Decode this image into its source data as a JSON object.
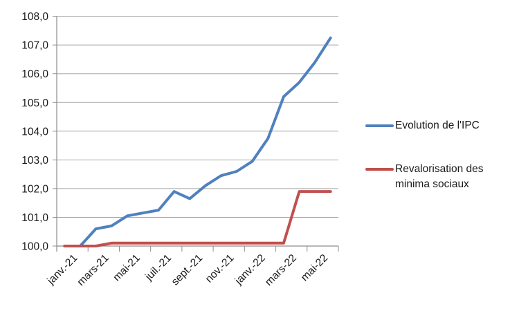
{
  "chart_data": {
    "type": "line",
    "title": "",
    "xlabel": "",
    "ylabel": "",
    "categories": [
      "janv.-21",
      "févr.-21",
      "mars-21",
      "avr.-21",
      "mai-21",
      "juin-21",
      "juil.-21",
      "août-21",
      "sept.-21",
      "oct.-21",
      "nov.-21",
      "déc.-21",
      "janv.-22",
      "févr.-22",
      "mars-22",
      "avr.-22",
      "mai-22",
      "juin-22"
    ],
    "x_tick_labels": [
      "janv.-21",
      "mars-21",
      "mai-21",
      "juil.-21",
      "sept.-21",
      "nov.-21",
      "janv.-22",
      "mars-22",
      "mai-22"
    ],
    "series": [
      {
        "name": "Evolution de l'IPC",
        "color": "#4F81BD",
        "values": [
          100.0,
          100.0,
          100.6,
          100.7,
          101.05,
          101.15,
          101.25,
          101.9,
          101.65,
          102.1,
          102.45,
          102.6,
          102.95,
          103.75,
          105.2,
          105.7,
          106.4,
          107.25
        ]
      },
      {
        "name": "Revalorisation des minima sociaux",
        "color": "#C0504D",
        "values": [
          100.0,
          100.0,
          100.0,
          100.1,
          100.1,
          100.1,
          100.1,
          100.1,
          100.1,
          100.1,
          100.1,
          100.1,
          100.1,
          100.1,
          100.1,
          101.9,
          101.9,
          101.9
        ]
      }
    ],
    "ylim": [
      100.0,
      108.0
    ],
    "y_tick_step": 1.0,
    "y_tick_labels": [
      "100,0",
      "101,0",
      "102,0",
      "103,0",
      "104,0",
      "105,0",
      "106,0",
      "107,0",
      "108,0"
    ],
    "grid": true,
    "legend_position": "right"
  },
  "legend": {
    "items": [
      {
        "label": "Evolution de l'IPC"
      },
      {
        "label": "Revalorisation des minima sociaux"
      }
    ]
  },
  "colors": {
    "ipc_line": "#4F81BD",
    "minima_line": "#C0504D",
    "gridline": "#A6A6A6",
    "axis": "#8C8C8C",
    "tick_text": "#1a1a1a",
    "background": "#FFFFFF"
  }
}
